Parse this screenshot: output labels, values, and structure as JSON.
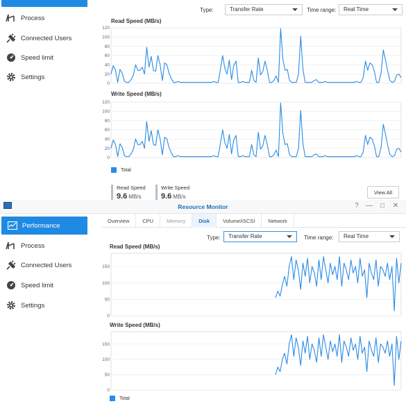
{
  "sidebar": {
    "items": [
      {
        "label": "Performance",
        "icon": "performance-icon"
      },
      {
        "label": "Process",
        "icon": "process-icon"
      },
      {
        "label": "Connected Users",
        "icon": "plug-icon"
      },
      {
        "label": "Speed limit",
        "icon": "speedometer-icon"
      },
      {
        "label": "Settings",
        "icon": "gear-icon"
      }
    ]
  },
  "top_panel": {
    "type_label": "Type:",
    "type_value": "Transfer Rate",
    "time_label": "Time range:",
    "time_value": "Real Time",
    "legend": "Total",
    "read_stat_label": "Read Speed",
    "read_stat_value": "9.6",
    "read_stat_unit": "MB/s",
    "write_stat_label": "Write Speed",
    "write_stat_value": "9.6",
    "write_stat_unit": "MB/s",
    "view_all": "View All"
  },
  "window": {
    "title": "Resource Monitor",
    "controls": [
      "?",
      "—",
      "□",
      "✕"
    ],
    "tabs": [
      "Overview",
      "CPU",
      "Memory",
      "Disk",
      "Volume/iSCSI",
      "Network"
    ],
    "active_tab": "Disk"
  },
  "bottom_panel": {
    "type_label": "Type:",
    "type_value": "Transfer Rate",
    "time_label": "Time range:",
    "time_value": "Real Time",
    "legend": "Total"
  },
  "colors": {
    "accent": "#1f8ae3",
    "series": "#2a8be5"
  },
  "chart_data": [
    {
      "type": "line",
      "title": "Read Speed (MB/s)",
      "ylim": [
        0,
        120
      ],
      "yticks": [
        0,
        20,
        40,
        60,
        80,
        100,
        120
      ],
      "series": [
        {
          "name": "Total",
          "values": [
            20,
            38,
            28,
            2,
            30,
            22,
            4,
            2,
            2,
            8,
            18,
            40,
            28,
            28,
            35,
            20,
            78,
            35,
            58,
            28,
            26,
            60,
            40,
            6,
            44,
            40,
            22,
            10,
            2,
            2,
            4,
            2,
            2,
            2,
            2,
            2,
            2,
            2,
            2,
            2,
            2,
            2,
            2,
            2,
            2,
            2,
            4,
            2,
            2,
            30,
            60,
            32,
            20,
            50,
            8,
            38,
            48,
            2,
            2,
            4,
            2,
            2,
            2,
            28,
            6,
            2,
            55,
            18,
            25,
            48,
            28,
            2,
            2,
            6,
            16,
            2,
            118,
            52,
            28,
            30,
            6,
            2,
            2,
            2,
            20,
            102,
            30,
            2,
            2,
            2,
            2,
            6,
            8,
            2,
            2,
            2,
            4,
            2,
            2,
            2,
            2,
            2,
            2,
            2,
            2,
            2,
            2,
            2,
            2,
            2,
            4,
            2,
            2,
            12,
            48,
            28,
            44,
            40,
            26,
            2,
            2,
            22,
            72,
            50,
            26,
            6,
            2,
            4,
            18,
            20,
            12
          ]
        }
      ]
    },
    {
      "type": "line",
      "title": "Write Speed (MB/s)",
      "ylim": [
        0,
        120
      ],
      "yticks": [
        0,
        20,
        40,
        60,
        80,
        100,
        120
      ],
      "series": [
        {
          "name": "Total",
          "values": [
            20,
            38,
            28,
            2,
            30,
            22,
            4,
            2,
            2,
            8,
            18,
            40,
            28,
            28,
            35,
            20,
            78,
            35,
            58,
            28,
            26,
            60,
            40,
            6,
            44,
            40,
            22,
            10,
            2,
            2,
            4,
            2,
            2,
            2,
            2,
            2,
            2,
            2,
            2,
            2,
            2,
            2,
            2,
            2,
            2,
            2,
            4,
            2,
            2,
            30,
            60,
            32,
            20,
            50,
            8,
            38,
            48,
            2,
            2,
            4,
            2,
            2,
            2,
            28,
            6,
            2,
            55,
            18,
            25,
            48,
            28,
            2,
            2,
            6,
            16,
            2,
            118,
            52,
            28,
            30,
            6,
            2,
            2,
            2,
            20,
            102,
            30,
            2,
            2,
            2,
            2,
            6,
            8,
            2,
            2,
            2,
            4,
            2,
            2,
            2,
            2,
            2,
            2,
            2,
            2,
            2,
            2,
            2,
            2,
            2,
            4,
            2,
            2,
            12,
            48,
            28,
            44,
            40,
            26,
            2,
            2,
            22,
            72,
            50,
            26,
            6,
            2,
            4,
            18,
            20,
            12
          ]
        }
      ]
    },
    {
      "type": "line",
      "title": "Read Speed (MB/s)",
      "ylim": [
        0,
        190
      ],
      "yticks": [
        0,
        50,
        100,
        150
      ],
      "series": [
        {
          "name": "Total",
          "values": [
            null,
            null,
            null,
            null,
            null,
            null,
            null,
            null,
            null,
            null,
            null,
            null,
            null,
            null,
            null,
            null,
            null,
            null,
            null,
            null,
            null,
            null,
            null,
            null,
            null,
            null,
            null,
            null,
            null,
            null,
            null,
            null,
            null,
            null,
            null,
            null,
            null,
            null,
            null,
            null,
            null,
            null,
            null,
            null,
            null,
            null,
            null,
            null,
            null,
            null,
            null,
            null,
            null,
            null,
            null,
            null,
            null,
            null,
            null,
            null,
            null,
            null,
            null,
            null,
            null,
            null,
            null,
            null,
            null,
            null,
            null,
            null,
            55,
            75,
            60,
            95,
            120,
            90,
            150,
            180,
            110,
            170,
            140,
            80,
            160,
            120,
            175,
            100,
            150,
            130,
            90,
            170,
            110,
            180,
            140,
            100,
            160,
            125,
            150,
            110,
            180,
            90,
            160,
            140,
            110,
            170,
            130,
            150,
            100,
            175,
            120,
            140,
            55,
            160,
            130,
            110,
            170,
            90,
            150,
            140,
            120,
            160,
            110,
            150,
            15,
            175,
            100,
            160
          ]
        }
      ]
    },
    {
      "type": "line",
      "title": "Write Speed (MB/s)",
      "ylim": [
        0,
        190
      ],
      "yticks": [
        0,
        50,
        100,
        150
      ],
      "series": [
        {
          "name": "Total",
          "values": [
            null,
            null,
            null,
            null,
            null,
            null,
            null,
            null,
            null,
            null,
            null,
            null,
            null,
            null,
            null,
            null,
            null,
            null,
            null,
            null,
            null,
            null,
            null,
            null,
            null,
            null,
            null,
            null,
            null,
            null,
            null,
            null,
            null,
            null,
            null,
            null,
            null,
            null,
            null,
            null,
            null,
            null,
            null,
            null,
            null,
            null,
            null,
            null,
            null,
            null,
            null,
            null,
            null,
            null,
            null,
            null,
            null,
            null,
            null,
            null,
            null,
            null,
            null,
            null,
            null,
            null,
            null,
            null,
            null,
            null,
            null,
            null,
            50,
            75,
            60,
            100,
            120,
            85,
            150,
            180,
            110,
            170,
            140,
            80,
            160,
            120,
            175,
            100,
            150,
            130,
            90,
            170,
            110,
            180,
            140,
            100,
            160,
            125,
            150,
            110,
            180,
            90,
            160,
            140,
            110,
            170,
            130,
            150,
            100,
            175,
            120,
            140,
            60,
            160,
            130,
            110,
            170,
            90,
            150,
            140,
            120,
            160,
            110,
            150,
            15,
            175,
            100,
            160
          ]
        }
      ]
    }
  ]
}
